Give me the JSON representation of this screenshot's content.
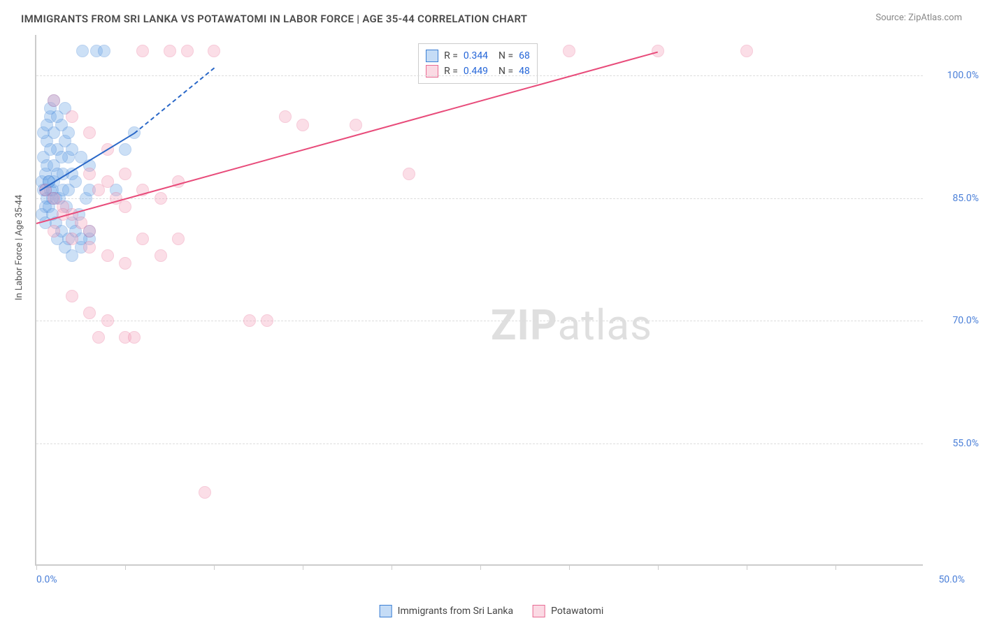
{
  "title": "IMMIGRANTS FROM SRI LANKA VS POTAWATOMI IN LABOR FORCE | AGE 35-44 CORRELATION CHART",
  "source": "Source: ZipAtlas.com",
  "y_axis_label": "In Labor Force | Age 35-44",
  "watermark_bold": "ZIP",
  "watermark_light": "atlas",
  "chart": {
    "type": "scatter",
    "xlim": [
      0,
      50
    ],
    "ylim": [
      40,
      105
    ],
    "x_tick_positions": [
      0,
      5,
      10,
      15,
      20,
      25,
      30,
      35,
      40,
      45
    ],
    "x_tick_labels_shown": {
      "0": "0.0%",
      "50": "50.0%"
    },
    "y_ticks": [
      55,
      70,
      85,
      100
    ],
    "y_tick_labels": [
      "55.0%",
      "70.0%",
      "85.0%",
      "100.0%"
    ],
    "background_color": "#ffffff",
    "grid_color": "#dddddd",
    "axis_color": "#cccccc",
    "marker_radius": 9,
    "marker_opacity": 0.35,
    "legend": [
      {
        "label": "Immigrants from Sri Lanka",
        "fill": "#6fa8e8",
        "stroke": "#3b7fd4"
      },
      {
        "label": "Potawatomi",
        "fill": "#f5a3bb",
        "stroke": "#e86b93"
      }
    ],
    "stats": [
      {
        "fill": "#6fa8e8",
        "stroke": "#3b7fd4",
        "r": "0.344",
        "n": "68"
      },
      {
        "fill": "#f5a3bb",
        "stroke": "#e86b93",
        "r": "0.449",
        "n": "48"
      }
    ],
    "series": [
      {
        "name": "Immigrants from Sri Lanka",
        "fill": "#6fa8e8",
        "stroke": "#3b7fd4",
        "trend": {
          "x1": 0.2,
          "y1": 86,
          "x2": 5.5,
          "y2": 93,
          "x2_dash": 10,
          "y2_dash": 101,
          "color": "#2a68c8"
        },
        "points": [
          [
            0.3,
            87
          ],
          [
            0.4,
            86
          ],
          [
            0.5,
            88
          ],
          [
            0.6,
            85
          ],
          [
            0.7,
            87
          ],
          [
            0.8,
            86
          ],
          [
            0.5,
            84
          ],
          [
            0.9,
            86
          ],
          [
            1.0,
            87
          ],
          [
            1.1,
            85
          ],
          [
            0.4,
            90
          ],
          [
            0.6,
            92
          ],
          [
            0.8,
            95
          ],
          [
            1.0,
            93
          ],
          [
            1.2,
            91
          ],
          [
            1.4,
            94
          ],
          [
            1.6,
            96
          ],
          [
            1.8,
            90
          ],
          [
            2.0,
            88
          ],
          [
            2.2,
            87
          ],
          [
            0.3,
            83
          ],
          [
            0.5,
            82
          ],
          [
            0.7,
            84
          ],
          [
            0.9,
            83
          ],
          [
            1.1,
            82
          ],
          [
            1.3,
            85
          ],
          [
            1.5,
            86
          ],
          [
            1.7,
            84
          ],
          [
            1.2,
            80
          ],
          [
            1.4,
            81
          ],
          [
            1.6,
            79
          ],
          [
            1.8,
            80
          ],
          [
            2.0,
            82
          ],
          [
            2.2,
            81
          ],
          [
            2.4,
            83
          ],
          [
            2.8,
            85
          ],
          [
            3.0,
            86
          ],
          [
            2.0,
            78
          ],
          [
            2.5,
            79
          ],
          [
            3.0,
            80
          ],
          [
            0.6,
            89
          ],
          [
            0.8,
            91
          ],
          [
            1.0,
            89
          ],
          [
            1.2,
            88
          ],
          [
            1.4,
            90
          ],
          [
            1.6,
            92
          ],
          [
            0.4,
            93
          ],
          [
            0.6,
            94
          ],
          [
            0.8,
            96
          ],
          [
            1.0,
            97
          ],
          [
            1.2,
            95
          ],
          [
            1.8,
            93
          ],
          [
            2.0,
            91
          ],
          [
            2.5,
            90
          ],
          [
            3.0,
            89
          ],
          [
            2.6,
            103
          ],
          [
            3.4,
            103
          ],
          [
            3.8,
            103
          ],
          [
            2.5,
            80
          ],
          [
            3.0,
            81
          ],
          [
            4.5,
            86
          ],
          [
            5.0,
            91
          ],
          [
            5.5,
            93
          ],
          [
            1.5,
            88
          ],
          [
            1.8,
            86
          ],
          [
            0.5,
            86
          ],
          [
            0.7,
            87
          ],
          [
            0.9,
            85
          ]
        ]
      },
      {
        "name": "Potawatomi",
        "fill": "#f5a3bb",
        "stroke": "#e86b93",
        "trend": {
          "x1": 0,
          "y1": 82,
          "x2": 35,
          "y2": 103,
          "color": "#e84b7a"
        },
        "points": [
          [
            0.5,
            86
          ],
          [
            1.0,
            85
          ],
          [
            1.5,
            84
          ],
          [
            2.0,
            83
          ],
          [
            2.5,
            82
          ],
          [
            3.0,
            88
          ],
          [
            3.5,
            86
          ],
          [
            4.0,
            87
          ],
          [
            4.5,
            85
          ],
          [
            5.0,
            84
          ],
          [
            1.0,
            97
          ],
          [
            2.0,
            95
          ],
          [
            3.0,
            93
          ],
          [
            4.0,
            91
          ],
          [
            5.0,
            88
          ],
          [
            6.0,
            86
          ],
          [
            7.0,
            85
          ],
          [
            8.0,
            87
          ],
          [
            6.0,
            103
          ],
          [
            7.5,
            103
          ],
          [
            8.5,
            103
          ],
          [
            10.0,
            103
          ],
          [
            14.0,
            95
          ],
          [
            15.0,
            94
          ],
          [
            18.0,
            94
          ],
          [
            21.0,
            88
          ],
          [
            30.0,
            103
          ],
          [
            35.0,
            103
          ],
          [
            40.0,
            103
          ],
          [
            1.0,
            81
          ],
          [
            2.0,
            80
          ],
          [
            3.0,
            79
          ],
          [
            4.0,
            78
          ],
          [
            5.0,
            77
          ],
          [
            6.0,
            80
          ],
          [
            7.0,
            78
          ],
          [
            2.0,
            73
          ],
          [
            3.0,
            71
          ],
          [
            4.0,
            70
          ],
          [
            5.0,
            68
          ],
          [
            12.0,
            70
          ],
          [
            13.0,
            70
          ],
          [
            3.5,
            68
          ],
          [
            5.5,
            68
          ],
          [
            9.5,
            49
          ],
          [
            8.0,
            80
          ],
          [
            3.0,
            81
          ],
          [
            1.5,
            83
          ]
        ]
      }
    ]
  }
}
